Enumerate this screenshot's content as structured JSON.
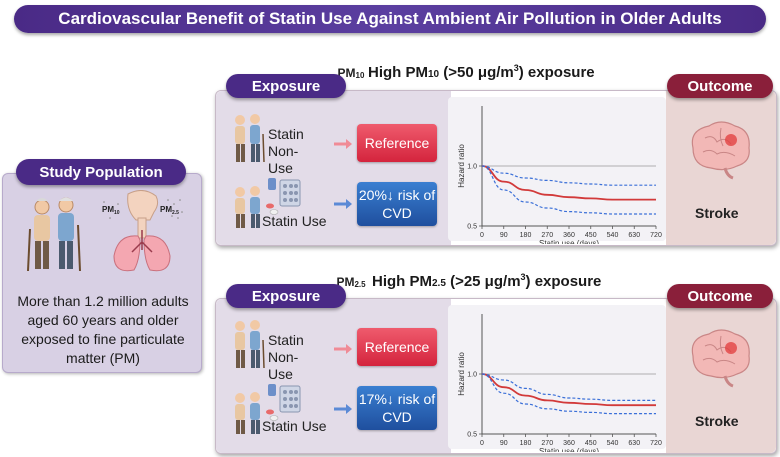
{
  "title": "Cardiovascular Benefit of Statin Use Against Ambient Air Pollution in Older Adults",
  "study": {
    "label": "Study Population",
    "description": "More than 1.2 million adults aged 60 years and older exposed to fine particulate matter (PM)",
    "pm10_icon": "PM",
    "pm10_icon_sub": "10",
    "pm25_icon": "PM",
    "pm25_icon_sub": "2.5"
  },
  "panels": [
    {
      "pm_icon": "PM",
      "pm_icon_sub": "10",
      "heading_pre": "High PM",
      "heading_sub": "10",
      "heading_post": " (>50 μg/m",
      "heading_sup": "3",
      "heading_end": ") exposure",
      "exposure_label": "Exposure",
      "outcome_label": "Outcome",
      "nonuse_label": "Statin Non-Use",
      "use_label": "Statin Use",
      "reference_label": "Reference",
      "risk_line1": "20%↓ risk of",
      "risk_line2": "CVD",
      "outcome_name": "Stroke"
    },
    {
      "pm_icon": "PM",
      "pm_icon_sub": "2.5",
      "heading_pre": "High PM",
      "heading_sub": "2.5",
      "heading_post": " (>25 μg/m",
      "heading_sup": "3",
      "heading_end": ") exposure",
      "exposure_label": "Exposure",
      "outcome_label": "Outcome",
      "nonuse_label": "Statin Non-Use",
      "use_label": "Statin Use",
      "reference_label": "Reference",
      "risk_line1": "17%↓ risk of",
      "risk_line2": "CVD",
      "outcome_name": "Stroke"
    }
  ],
  "chart_data": [
    {
      "type": "line",
      "title": "",
      "xlabel": "Statin use (days)",
      "ylabel": "Hazard ratio",
      "xticks": [
        0,
        90,
        180,
        270,
        360,
        450,
        540,
        630,
        720
      ],
      "yticks": [
        0.5,
        1.0
      ],
      "xlim": [
        0,
        720
      ],
      "ylim": [
        0.5,
        1.5
      ],
      "reference_line": 1.0,
      "series": [
        {
          "name": "estimate",
          "style": "solid",
          "color": "#d23a3a",
          "x": [
            0,
            90,
            180,
            270,
            360,
            450,
            540,
            630,
            720
          ],
          "y": [
            1.0,
            0.87,
            0.8,
            0.76,
            0.74,
            0.73,
            0.72,
            0.72,
            0.72
          ]
        },
        {
          "name": "upper CI",
          "style": "dashed",
          "color": "#3a6fd8",
          "x": [
            0,
            90,
            180,
            270,
            360,
            450,
            540,
            630,
            720
          ],
          "y": [
            1.0,
            0.94,
            0.9,
            0.88,
            0.86,
            0.85,
            0.84,
            0.84,
            0.84
          ]
        },
        {
          "name": "lower CI",
          "style": "dashed",
          "color": "#3a6fd8",
          "x": [
            0,
            90,
            180,
            270,
            360,
            450,
            540,
            630,
            720
          ],
          "y": [
            1.0,
            0.8,
            0.7,
            0.65,
            0.62,
            0.61,
            0.6,
            0.6,
            0.6
          ]
        }
      ]
    },
    {
      "type": "line",
      "title": "",
      "xlabel": "Statin use (days)",
      "ylabel": "Hazard ratio",
      "xticks": [
        0,
        90,
        180,
        270,
        360,
        450,
        540,
        630,
        720
      ],
      "yticks": [
        0.5,
        1.0
      ],
      "xlim": [
        0,
        720
      ],
      "ylim": [
        0.5,
        1.5
      ],
      "reference_line": 1.0,
      "series": [
        {
          "name": "estimate",
          "style": "solid",
          "color": "#d23a3a",
          "x": [
            0,
            90,
            180,
            270,
            360,
            450,
            540,
            630,
            720
          ],
          "y": [
            1.0,
            0.89,
            0.82,
            0.78,
            0.76,
            0.75,
            0.74,
            0.74,
            0.74
          ]
        },
        {
          "name": "upper CI",
          "style": "dashed",
          "color": "#3a6fd8",
          "x": [
            0,
            90,
            180,
            270,
            360,
            450,
            540,
            630,
            720
          ],
          "y": [
            1.0,
            0.95,
            0.88,
            0.83,
            0.8,
            0.79,
            0.78,
            0.78,
            0.78
          ]
        },
        {
          "name": "lower CI",
          "style": "dashed",
          "color": "#3a6fd8",
          "x": [
            0,
            90,
            180,
            270,
            360,
            450,
            540,
            630,
            720
          ],
          "y": [
            1.0,
            0.84,
            0.75,
            0.71,
            0.69,
            0.68,
            0.67,
            0.67,
            0.67
          ]
        }
      ]
    }
  ],
  "colors": {
    "purple": "#4a2a86",
    "maroon": "#8a1f3a",
    "reference_red": "#d4243d",
    "risk_blue": "#1f4f9e"
  }
}
